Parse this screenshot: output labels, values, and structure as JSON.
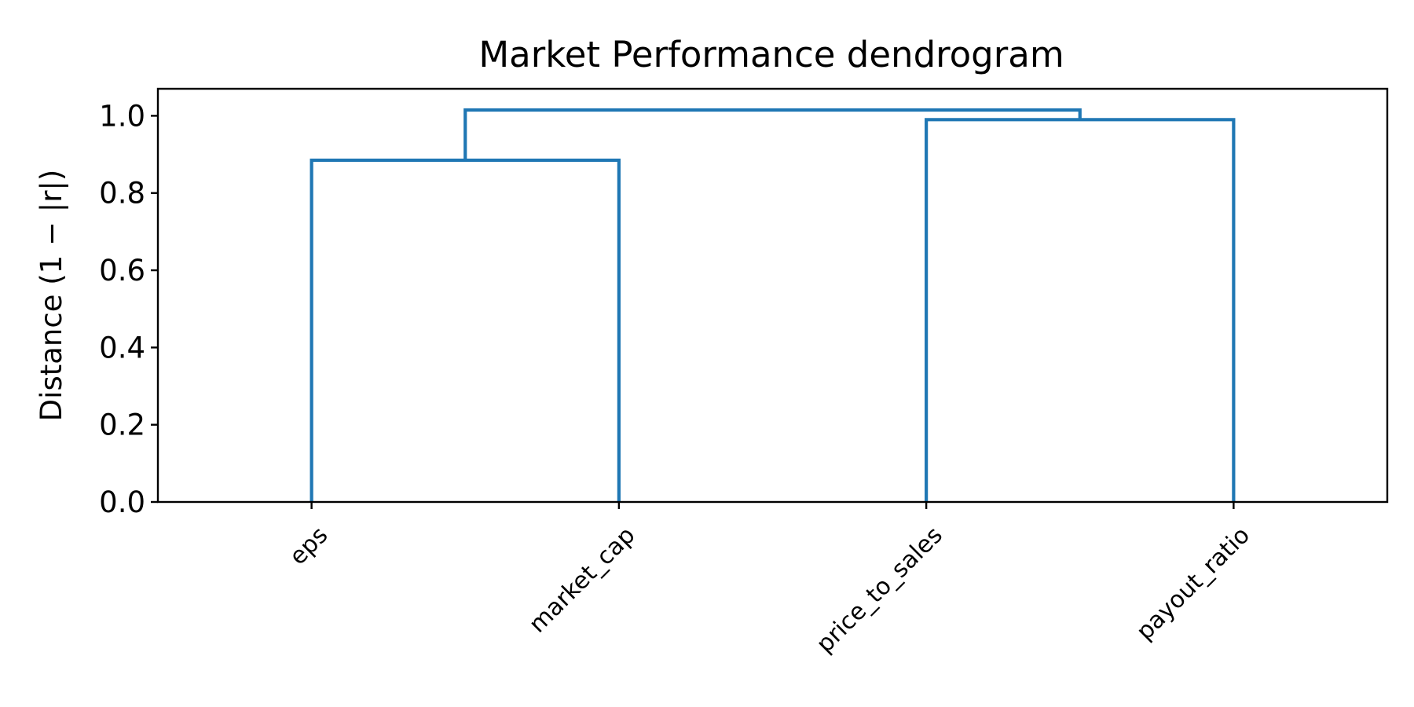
{
  "chart_data": {
    "type": "dendrogram",
    "title": "Market Performance dendrogram",
    "xlabel": "",
    "ylabel": "Distance (1 − |r|)",
    "ylim": [
      0,
      1.07
    ],
    "yticks": [
      0.0,
      0.2,
      0.4,
      0.6,
      0.8,
      1.0
    ],
    "ytick_labels": [
      "0.0",
      "0.2",
      "0.4",
      "0.6",
      "0.8",
      "1.0"
    ],
    "leaves": [
      "eps",
      "market_cap",
      "price_to_sales",
      "payout_ratio"
    ],
    "merges": [
      {
        "left": "eps",
        "right": "market_cap",
        "height": 0.885
      },
      {
        "left": "price_to_sales",
        "right": "payout_ratio",
        "height": 0.99
      },
      {
        "left": "cluster:eps+market_cap",
        "right": "cluster:price_to_sales+payout_ratio",
        "height": 1.015
      }
    ],
    "grid": false,
    "legend": "none",
    "link_color": "#1f77b4"
  }
}
